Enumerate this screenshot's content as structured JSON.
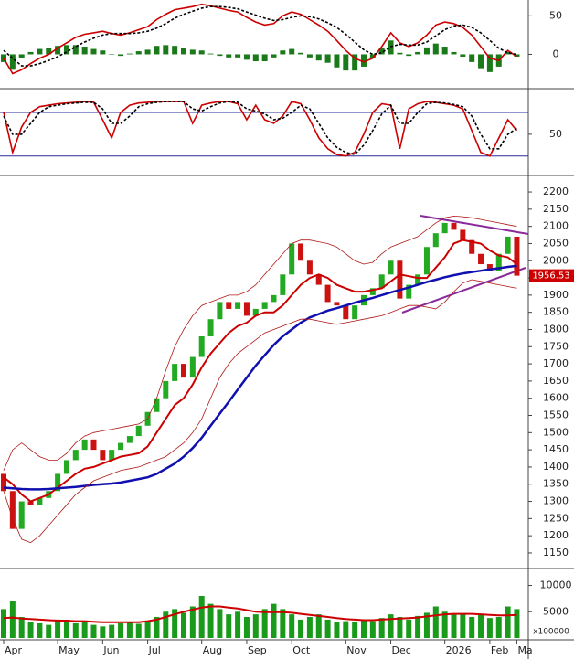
{
  "chart_data": [
    {
      "type": "macd",
      "ylim": [
        -41,
        67
      ],
      "yticks": [
        0,
        50
      ],
      "series": [
        {
          "color": "#cc0000",
          "values": [
            -5,
            -25,
            -20,
            -12,
            -5,
            0,
            8,
            15,
            22,
            26,
            28,
            30,
            27,
            25,
            28,
            32,
            36,
            45,
            52,
            58,
            60,
            62,
            65,
            63,
            60,
            57,
            55,
            48,
            42,
            38,
            40,
            50,
            55,
            52,
            45,
            38,
            30,
            18,
            5,
            -5,
            -10,
            -5,
            10,
            28,
            15,
            10,
            15,
            25,
            38,
            42,
            40,
            35,
            25,
            10,
            -5,
            -8,
            5,
            -3
          ]
        },
        {
          "color": "#000000",
          "dash": true,
          "values": [
            5,
            -5,
            -15,
            -15,
            -12,
            -8,
            -3,
            3,
            10,
            16,
            21,
            25,
            27,
            27,
            27,
            28,
            30,
            34,
            40,
            47,
            52,
            56,
            60,
            62,
            62,
            61,
            59,
            55,
            51,
            47,
            44,
            45,
            48,
            50,
            49,
            46,
            41,
            35,
            26,
            16,
            6,
            0,
            2,
            10,
            13,
            12,
            12,
            16,
            24,
            32,
            37,
            38,
            35,
            28,
            18,
            8,
            2,
            0
          ]
        }
      ],
      "bars": {
        "color": "#1a7a1a",
        "values": [
          -10,
          -20,
          -5,
          3,
          7,
          8,
          11,
          12,
          12,
          10,
          7,
          5,
          0,
          -2,
          1,
          4,
          6,
          11,
          12,
          11,
          8,
          6,
          5,
          1,
          -2,
          -4,
          -4,
          -7,
          -9,
          -9,
          -4,
          5,
          7,
          2,
          -4,
          -8,
          -11,
          -17,
          -21,
          -21,
          -16,
          -5,
          8,
          18,
          2,
          -2,
          3,
          9,
          14,
          10,
          3,
          -3,
          -10,
          -18,
          -23,
          -16,
          3,
          -3
        ]
      }
    },
    {
      "type": "stochastic",
      "ylim": [
        -3,
        109
      ],
      "yticks": [
        50
      ],
      "hlines": [
        20,
        80
      ],
      "hline_color": "#2a2a9a",
      "series": [
        {
          "color": "#cc0000",
          "values": [
            80,
            25,
            60,
            80,
            88,
            90,
            92,
            93,
            94,
            95,
            94,
            70,
            45,
            80,
            90,
            93,
            94,
            95,
            95,
            95,
            95,
            65,
            90,
            93,
            95,
            95,
            92,
            70,
            90,
            70,
            65,
            75,
            95,
            92,
            70,
            45,
            30,
            22,
            20,
            25,
            50,
            80,
            92,
            90,
            30,
            85,
            92,
            95,
            94,
            92,
            90,
            85,
            55,
            25,
            20,
            45,
            70,
            55
          ]
        },
        {
          "color": "#000000",
          "dash": true,
          "values": [
            75,
            50,
            50,
            65,
            80,
            88,
            90,
            92,
            93,
            94,
            94,
            85,
            65,
            65,
            75,
            88,
            92,
            94,
            95,
            95,
            95,
            85,
            82,
            88,
            93,
            95,
            94,
            85,
            82,
            78,
            70,
            72,
            80,
            90,
            85,
            65,
            45,
            32,
            25,
            22,
            35,
            55,
            78,
            90,
            65,
            65,
            80,
            92,
            94,
            93,
            91,
            88,
            75,
            50,
            30,
            30,
            50,
            58
          ]
        }
      ]
    },
    {
      "type": "candlestick",
      "ylim": [
        1110,
        2240
      ],
      "yticks": [
        1150,
        1200,
        1250,
        1300,
        1350,
        1400,
        1450,
        1500,
        1550,
        1600,
        1650,
        1700,
        1750,
        1800,
        1850,
        1900,
        1950,
        2000,
        2050,
        2100,
        2150,
        2200
      ],
      "up_color": "#22aa22",
      "down_color": "#cc1111",
      "open": [
        1380,
        1330,
        1220,
        1300,
        1290,
        1310,
        1330,
        1380,
        1420,
        1450,
        1480,
        1450,
        1420,
        1450,
        1470,
        1490,
        1520,
        1560,
        1600,
        1650,
        1700,
        1660,
        1720,
        1780,
        1830,
        1880,
        1860,
        1880,
        1840,
        1860,
        1880,
        1900,
        1960,
        2050,
        2000,
        1960,
        1930,
        1880,
        1870,
        1830,
        1870,
        1900,
        1920,
        1960,
        2000,
        1890,
        1930,
        1960,
        2040,
        2080,
        2110,
        2090,
        2060,
        2020,
        1990,
        1970,
        2020,
        2070
      ],
      "close": [
        1330,
        1220,
        1300,
        1290,
        1310,
        1330,
        1380,
        1420,
        1450,
        1480,
        1450,
        1420,
        1450,
        1470,
        1490,
        1520,
        1560,
        1600,
        1650,
        1700,
        1660,
        1720,
        1780,
        1830,
        1880,
        1860,
        1880,
        1840,
        1860,
        1880,
        1900,
        1960,
        2050,
        2000,
        1960,
        1930,
        1880,
        1870,
        1830,
        1870,
        1900,
        1920,
        1960,
        2000,
        1890,
        1930,
        1960,
        2040,
        2080,
        2110,
        2090,
        2060,
        2020,
        1990,
        1970,
        2020,
        2070,
        1956.53
      ],
      "series": [
        {
          "color": "#cc0000",
          "width": 2,
          "values": [
            1370,
            1350,
            1320,
            1300,
            1310,
            1320,
            1340,
            1360,
            1380,
            1395,
            1400,
            1410,
            1420,
            1430,
            1435,
            1440,
            1460,
            1500,
            1540,
            1580,
            1600,
            1640,
            1690,
            1730,
            1760,
            1790,
            1810,
            1820,
            1840,
            1850,
            1850,
            1870,
            1900,
            1930,
            1950,
            1960,
            1950,
            1930,
            1920,
            1910,
            1910,
            1915,
            1920,
            1940,
            1960,
            1955,
            1950,
            1950,
            1980,
            2010,
            2050,
            2060,
            2055,
            2050,
            2030,
            2015,
            2010,
            1990
          ]
        },
        {
          "color": "#1010b0",
          "width": 2.5,
          "values": [
            1340,
            1338,
            1336,
            1335,
            1335,
            1336,
            1338,
            1340,
            1342,
            1345,
            1348,
            1350,
            1352,
            1355,
            1360,
            1365,
            1370,
            1380,
            1395,
            1410,
            1430,
            1455,
            1485,
            1520,
            1555,
            1590,
            1625,
            1660,
            1695,
            1725,
            1755,
            1780,
            1800,
            1820,
            1835,
            1845,
            1855,
            1862,
            1870,
            1878,
            1885,
            1892,
            1900,
            1908,
            1915,
            1922,
            1930,
            1938,
            1945,
            1952,
            1958,
            1963,
            1967,
            1971,
            1975,
            1978,
            1982,
            1985
          ]
        },
        {
          "color": "#b01818",
          "width": 0.8,
          "values": [
            1390,
            1450,
            1470,
            1450,
            1430,
            1420,
            1420,
            1440,
            1470,
            1490,
            1500,
            1505,
            1510,
            1515,
            1520,
            1525,
            1540,
            1600,
            1680,
            1750,
            1800,
            1840,
            1870,
            1880,
            1890,
            1900,
            1900,
            1910,
            1930,
            1960,
            1990,
            2020,
            2050,
            2060,
            2060,
            2055,
            2050,
            2040,
            2020,
            2000,
            1990,
            1995,
            2020,
            2040,
            2050,
            2060,
            2070,
            2090,
            2110,
            2125,
            2130,
            2128,
            2125,
            2120,
            2115,
            2110,
            2105,
            2100
          ]
        },
        {
          "color": "#b01818",
          "width": 0.8,
          "values": [
            1330,
            1250,
            1190,
            1180,
            1200,
            1230,
            1260,
            1290,
            1320,
            1340,
            1360,
            1370,
            1380,
            1390,
            1395,
            1400,
            1410,
            1420,
            1430,
            1450,
            1470,
            1500,
            1540,
            1600,
            1660,
            1700,
            1730,
            1750,
            1770,
            1790,
            1800,
            1810,
            1820,
            1830,
            1830,
            1825,
            1820,
            1815,
            1820,
            1825,
            1830,
            1835,
            1840,
            1850,
            1860,
            1870,
            1870,
            1865,
            1860,
            1880,
            1910,
            1935,
            1945,
            1940,
            1935,
            1930,
            1925,
            1920
          ]
        }
      ]
    },
    {
      "type": "bar",
      "ylim": [
        0,
        12700
      ],
      "yticks": [
        5000,
        10000
      ],
      "unit_label": "x100000",
      "color": "#1a9a1a",
      "values": [
        5500,
        7000,
        4000,
        3000,
        2800,
        2500,
        3500,
        3000,
        2800,
        3200,
        2500,
        2200,
        2500,
        2800,
        3000,
        2700,
        3000,
        4000,
        5000,
        5500,
        4800,
        6000,
        8000,
        6500,
        5500,
        4500,
        5000,
        4000,
        4500,
        5500,
        6500,
        5500,
        4500,
        3500,
        4000,
        4500,
        3500,
        3000,
        3200,
        3000,
        3500,
        3200,
        3800,
        4500,
        4000,
        3500,
        4200,
        4800,
        6000,
        5000,
        4500,
        4500,
        4000,
        4500,
        3800,
        4000,
        6000,
        5500
      ],
      "series": [
        {
          "color": "#cc0000",
          "width": 2,
          "values": [
            3800,
            3900,
            3700,
            3600,
            3500,
            3400,
            3300,
            3300,
            3200,
            3200,
            3100,
            3000,
            3000,
            3000,
            3000,
            3000,
            3200,
            3500,
            4000,
            4500,
            5000,
            5400,
            5800,
            6000,
            6000,
            5800,
            5600,
            5300,
            5000,
            4900,
            4900,
            4900,
            4800,
            4600,
            4400,
            4200,
            4000,
            3800,
            3600,
            3500,
            3400,
            3400,
            3500,
            3600,
            3700,
            3800,
            3900,
            4100,
            4300,
            4500,
            4600,
            4600,
            4600,
            4500,
            4400,
            4300,
            4300,
            4400
          ]
        }
      ],
      "categories": [
        "Apr",
        null,
        null,
        null,
        null,
        null,
        "May",
        null,
        null,
        null,
        null,
        "Jun",
        null,
        null,
        null,
        null,
        "Jul",
        null,
        null,
        null,
        null,
        null,
        "Aug",
        null,
        null,
        null,
        null,
        "Sep",
        null,
        null,
        null,
        null,
        "Oct",
        null,
        null,
        null,
        null,
        null,
        "Nov",
        null,
        null,
        null,
        null,
        "Dec",
        null,
        null,
        null,
        null,
        null,
        "2026",
        null,
        null,
        null,
        null,
        "Feb",
        null,
        null,
        "Ma"
      ]
    }
  ]
}
